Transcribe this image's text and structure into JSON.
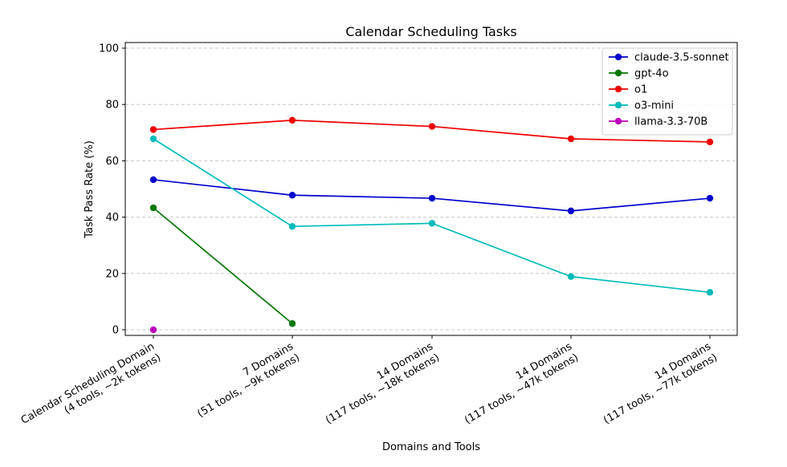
{
  "chart_data": {
    "type": "line",
    "title": "Calendar Scheduling Tasks",
    "xlabel": "Domains and Tools",
    "ylabel": "Task Pass Rate (%)",
    "categories": [
      [
        "Calendar Scheduling Domain",
        "(4 tools, ~2k tokens)"
      ],
      [
        "7 Domains",
        "(51 tools, ~9k tokens)"
      ],
      [
        "14 Domains",
        "(117 tools, ~18k tokens)"
      ],
      [
        "14 Domains",
        "(117 tools, ~47k tokens)"
      ],
      [
        "14 Domains",
        "(117 tools, ~77k tokens)"
      ]
    ],
    "yticks": [
      0,
      20,
      40,
      60,
      80,
      100
    ],
    "ylim": [
      -2,
      102
    ],
    "grid": "horizontal dashed",
    "legend_position": "top-right",
    "series": [
      {
        "name": "claude-3.5-sonnet",
        "color": "#0000cc",
        "values": [
          53.3,
          47.8,
          46.7,
          42.2,
          46.7
        ]
      },
      {
        "name": "gpt-4o",
        "color": "#007700",
        "values": [
          43.3,
          2.2,
          null,
          null,
          null
        ]
      },
      {
        "name": "o1",
        "color": "#ee0000",
        "values": [
          71.1,
          74.4,
          72.2,
          67.8,
          66.7
        ]
      },
      {
        "name": "o3-mini",
        "color": "#00bbbb",
        "values": [
          67.8,
          36.7,
          37.8,
          18.9,
          13.3
        ]
      },
      {
        "name": "llama-3.3-70B",
        "color": "#bb00bb",
        "values": [
          0.0,
          null,
          null,
          null,
          null
        ]
      }
    ]
  }
}
